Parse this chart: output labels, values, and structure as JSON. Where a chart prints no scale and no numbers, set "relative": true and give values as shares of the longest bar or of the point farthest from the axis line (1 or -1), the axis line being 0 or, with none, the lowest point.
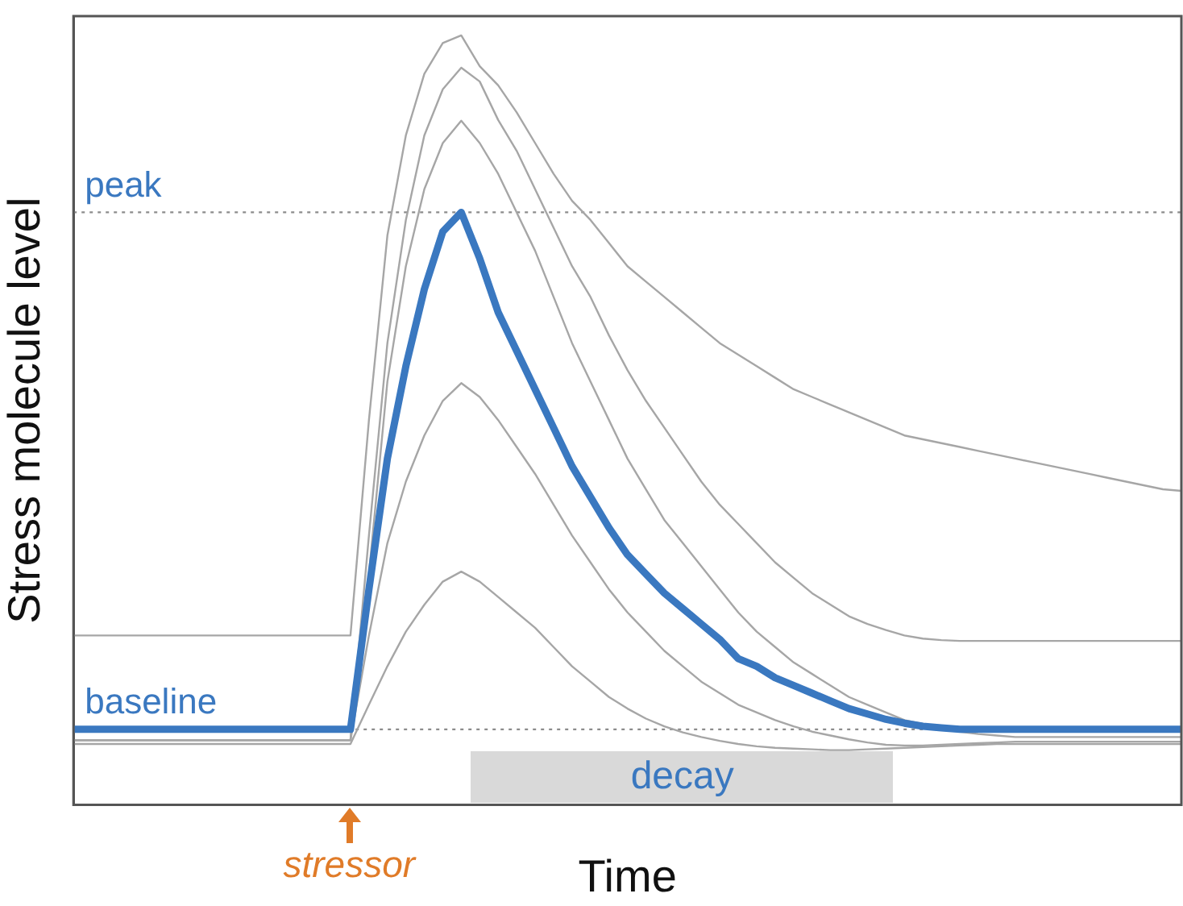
{
  "chart_data": {
    "type": "line",
    "relative": true,
    "xlabel": "Time",
    "ylabel": "Stress molecule level",
    "grid": false,
    "legend": false,
    "marker": "none",
    "line_style": "solid",
    "categories": [
      null,
      null,
      null,
      null,
      null,
      null,
      null,
      null,
      null,
      null,
      null,
      null,
      null,
      null,
      null,
      null,
      null,
      null,
      null,
      null,
      null,
      null,
      null,
      null,
      null,
      null,
      null,
      null,
      null,
      null,
      null,
      null,
      null,
      null,
      null,
      null,
      null,
      null,
      null,
      null,
      null,
      null,
      null,
      null,
      null,
      null,
      null,
      null,
      null,
      null,
      null,
      null,
      null,
      null,
      null,
      null,
      null,
      null,
      null,
      null,
      null
    ],
    "series": [
      {
        "color": "#a6a6a6",
        "values": [
          0.22,
          0.22,
          0.22,
          0.22,
          0.22,
          0.22,
          0.22,
          0.22,
          0.22,
          0.22,
          0.22,
          0.22,
          0.22,
          0.22,
          0.22,
          0.22,
          0.5,
          0.74,
          0.87,
          0.95,
          0.99,
          1,
          0.96,
          0.935,
          0.9,
          0.86,
          0.82,
          0.785,
          0.76,
          0.73,
          0.7,
          0.68,
          0.66,
          0.64,
          0.62,
          0.6,
          0.585,
          0.57,
          0.555,
          0.54,
          0.53,
          0.52,
          0.51,
          0.5,
          0.49,
          0.48,
          0.475,
          0.47,
          0.465,
          0.46,
          0.455,
          0.45,
          0.445,
          0.44,
          0.435,
          0.43,
          0.425,
          0.42,
          0.415,
          0.41,
          0.408
        ]
      },
      {
        "color": "#a6a6a6",
        "values": [
          0.084,
          0.084,
          0.084,
          0.084,
          0.084,
          0.084,
          0.084,
          0.084,
          0.084,
          0.084,
          0.084,
          0.084,
          0.084,
          0.084,
          0.084,
          0.084,
          0.35,
          0.6,
          0.76,
          0.87,
          0.93,
          0.958,
          0.94,
          0.89,
          0.85,
          0.8,
          0.75,
          0.7,
          0.66,
          0.61,
          0.565,
          0.525,
          0.49,
          0.455,
          0.42,
          0.39,
          0.365,
          0.34,
          0.315,
          0.295,
          0.275,
          0.26,
          0.245,
          0.235,
          0.227,
          0.22,
          0.216,
          0.214,
          0.213,
          0.213,
          0.213,
          0.213,
          0.213,
          0.213,
          0.213,
          0.213,
          0.213,
          0.213,
          0.213,
          0.213,
          0.213
        ]
      },
      {
        "color": "#a6a6a6",
        "values": [
          0.084,
          0.084,
          0.084,
          0.084,
          0.084,
          0.084,
          0.084,
          0.084,
          0.084,
          0.084,
          0.084,
          0.084,
          0.084,
          0.084,
          0.084,
          0.084,
          0.3,
          0.55,
          0.7,
          0.8,
          0.86,
          0.889,
          0.86,
          0.82,
          0.77,
          0.72,
          0.66,
          0.6,
          0.55,
          0.5,
          0.45,
          0.41,
          0.37,
          0.34,
          0.31,
          0.28,
          0.25,
          0.225,
          0.205,
          0.185,
          0.17,
          0.155,
          0.14,
          0.13,
          0.12,
          0.11,
          0.105,
          0.1,
          0.095,
          0.092,
          0.09,
          0.088,
          0.088,
          0.088,
          0.088,
          0.088,
          0.088,
          0.088,
          0.088,
          0.088,
          0.088
        ]
      },
      {
        "color": "#a6a6a6",
        "values": [
          0.084,
          0.084,
          0.084,
          0.084,
          0.084,
          0.084,
          0.084,
          0.084,
          0.084,
          0.084,
          0.084,
          0.084,
          0.084,
          0.084,
          0.084,
          0.084,
          0.22,
          0.34,
          0.42,
          0.48,
          0.525,
          0.548,
          0.53,
          0.5,
          0.465,
          0.43,
          0.39,
          0.35,
          0.315,
          0.28,
          0.25,
          0.225,
          0.2,
          0.18,
          0.16,
          0.145,
          0.13,
          0.12,
          0.11,
          0.102,
          0.095,
          0.09,
          0.085,
          0.081,
          0.078,
          0.077,
          0.077,
          0.078,
          0.079,
          0.08,
          0.081,
          0.082,
          0.082,
          0.082,
          0.082,
          0.082,
          0.082,
          0.082,
          0.082,
          0.082,
          0.082
        ]
      },
      {
        "color": "#a6a6a6",
        "values": [
          0.079,
          0.079,
          0.079,
          0.079,
          0.079,
          0.079,
          0.079,
          0.079,
          0.079,
          0.079,
          0.079,
          0.079,
          0.079,
          0.079,
          0.079,
          0.079,
          0.13,
          0.18,
          0.225,
          0.26,
          0.29,
          0.303,
          0.29,
          0.27,
          0.25,
          0.23,
          0.205,
          0.18,
          0.16,
          0.14,
          0.125,
          0.112,
          0.102,
          0.094,
          0.088,
          0.083,
          0.079,
          0.076,
          0.074,
          0.073,
          0.072,
          0.071,
          0.071,
          0.072,
          0.073,
          0.074,
          0.075,
          0.076,
          0.077,
          0.078,
          0.079,
          0.079,
          0.079,
          0.079,
          0.079,
          0.079,
          0.079,
          0.079,
          0.079,
          0.079,
          0.079
        ]
      },
      {
        "color": "#3a78c0",
        "values": [
          0.098,
          0.098,
          0.098,
          0.098,
          0.098,
          0.098,
          0.098,
          0.098,
          0.098,
          0.098,
          0.098,
          0.098,
          0.098,
          0.098,
          0.098,
          0.098,
          0.28,
          0.45,
          0.57,
          0.67,
          0.745,
          0.77,
          0.71,
          0.64,
          0.59,
          0.54,
          0.49,
          0.44,
          0.4,
          0.36,
          0.325,
          0.3,
          0.275,
          0.255,
          0.235,
          0.215,
          0.19,
          0.18,
          0.165,
          0.155,
          0.145,
          0.135,
          0.125,
          0.118,
          0.111,
          0.106,
          0.102,
          0.1,
          0.098,
          0.098,
          0.098,
          0.098,
          0.098,
          0.098,
          0.098,
          0.098,
          0.098,
          0.098,
          0.098,
          0.098,
          0.098
        ]
      }
    ],
    "ref_lines": [
      {
        "axis": "y",
        "value": 0.77,
        "label": "peak",
        "color": "#8c8c8c",
        "line_style": "dotted"
      },
      {
        "axis": "y",
        "value": 0.098,
        "label": "baseline",
        "color": "#8c8c8c",
        "line_style": "dotted"
      }
    ],
    "annotations": [
      "stressor",
      "decay"
    ]
  }
}
